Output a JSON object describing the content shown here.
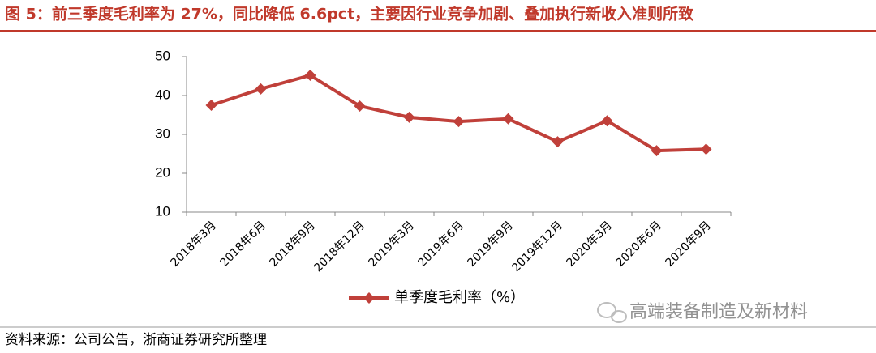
{
  "chart_data": {
    "type": "line",
    "title": "图 5：前三季度毛利率为 27%，同比降低 6.6pct，主要因行业竞争加剧、叠加执行新收入准则所致",
    "categories": [
      "2018年3月",
      "2018年6月",
      "2018年9月",
      "2018年12月",
      "2019年3月",
      "2019年6月",
      "2019年9月",
      "2019年12月",
      "2020年3月",
      "2020年6月",
      "2020年9月"
    ],
    "series": [
      {
        "name": "单季度毛利率（%）",
        "color": "#c0403a",
        "values": [
          37.5,
          41.7,
          45.2,
          37.3,
          34.4,
          33.3,
          34.0,
          28.1,
          33.5,
          25.8,
          26.2
        ]
      }
    ],
    "ylim": [
      10,
      50
    ],
    "yticks": [
      10,
      20,
      30,
      40,
      50
    ],
    "grid": false,
    "source": "资料来源：公司公告，浙商证券研究所整理",
    "watermark": "高端装备制造及新材料"
  }
}
